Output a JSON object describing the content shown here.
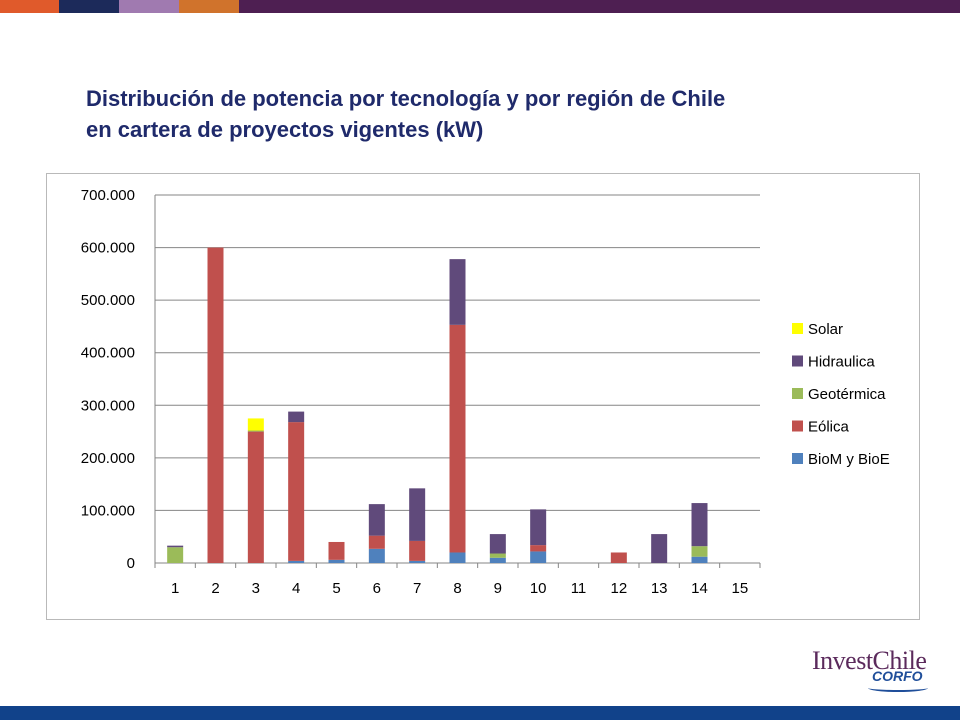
{
  "colors": {
    "topbar": [
      "#e05a2b",
      "#1c2a5a",
      "#a07ab0",
      "#d0732c",
      "#4e1f52"
    ],
    "bottombar": "#11428a",
    "title": "#1f2a6b"
  },
  "title": {
    "line1": "Distribución de potencia por tecnología y por región de Chile",
    "line2": "en cartera de proyectos vigentes (kW)"
  },
  "logo": {
    "text": "InvestChile",
    "subtext": "CORFO"
  },
  "chart_data": {
    "type": "bar",
    "stacked": true,
    "categories": [
      "1",
      "2",
      "3",
      "4",
      "5",
      "6",
      "7",
      "8",
      "9",
      "10",
      "11",
      "12",
      "13",
      "14",
      "15"
    ],
    "ylim": [
      0,
      700000
    ],
    "yticks": [
      0,
      100000,
      200000,
      300000,
      400000,
      500000,
      600000,
      700000
    ],
    "ytick_labels": [
      "0",
      "100.000",
      "200.000",
      "300.000",
      "400.000",
      "500.000",
      "600.000",
      "700.000"
    ],
    "grid": true,
    "legend_position": "right",
    "series": [
      {
        "name": "BioM y BioE",
        "color": "#4f81bd",
        "values": [
          0,
          0,
          0,
          4000,
          6000,
          27000,
          4000,
          20000,
          10000,
          22000,
          0,
          0,
          0,
          12000,
          0
        ]
      },
      {
        "name": "Eólica",
        "color": "#c0504d",
        "values": [
          0,
          600000,
          250000,
          264000,
          34000,
          25000,
          38000,
          433000,
          0,
          12000,
          0,
          20000,
          0,
          0,
          0
        ]
      },
      {
        "name": "Geotérmica",
        "color": "#9bbb59",
        "values": [
          30000,
          0,
          2000,
          0,
          0,
          0,
          0,
          0,
          8000,
          0,
          0,
          0,
          0,
          20000,
          0
        ]
      },
      {
        "name": "Hidraulica",
        "color": "#604a7b",
        "values": [
          3000,
          0,
          0,
          20000,
          0,
          60000,
          100000,
          125000,
          37000,
          68000,
          0,
          0,
          55000,
          82000,
          0
        ]
      },
      {
        "name": "Solar",
        "color": "#ffff00",
        "values": [
          0,
          0,
          23000,
          0,
          0,
          0,
          0,
          0,
          0,
          0,
          0,
          0,
          0,
          0,
          0
        ]
      }
    ],
    "legend_order": [
      "Solar",
      "Hidraulica",
      "Geotérmica",
      "Eólica",
      "BioM y BioE"
    ]
  }
}
